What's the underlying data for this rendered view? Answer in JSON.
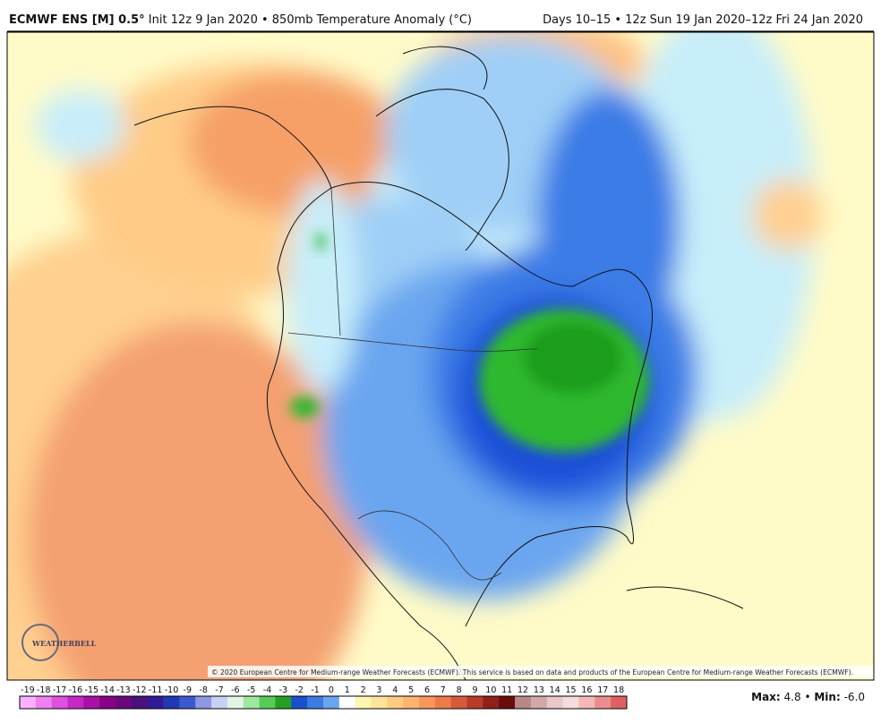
{
  "header": {
    "title_bold": "ECMWF ENS [M] 0.5°",
    "title_rest": "Init 12z 9 Jan 2020 • 850mb Temperature Anomaly (°C)",
    "right": "Days 10–15 • 12z Sun 19 Jan 2020–12z Fri 24 Jan 2020"
  },
  "map": {
    "copyright": "© 2020 European Centre for Medium-range Weather Forecasts (ECMWF). This service is based on data and products of the European Centre for Medium-range Weather Forecasts (ECMWF).",
    "logo": "WEATHERBELL"
  },
  "colorbar": {
    "labels": [
      -19,
      -18,
      -17,
      -16,
      -15,
      -14,
      -13,
      -12,
      -11,
      -10,
      -9,
      -8,
      -7,
      -6,
      -5,
      -4,
      -3,
      -2,
      -1,
      0,
      1,
      2,
      3,
      4,
      5,
      6,
      7,
      8,
      9,
      10,
      11,
      12,
      13,
      14,
      15,
      16,
      17,
      18
    ],
    "colors": [
      "#ffb0ff",
      "#f080f0",
      "#e050e0",
      "#c828c8",
      "#a810a8",
      "#880088",
      "#6a0a7a",
      "#4a107e",
      "#301a9a",
      "#2038b8",
      "#3a5ad0",
      "#8c98e0",
      "#c8d0f4",
      "#e4f4e4",
      "#9ee89e",
      "#56cc56",
      "#22a022",
      "#1a4fd0",
      "#3a7be6",
      "#6aa6ef",
      "#ffffff",
      "#fff6b0",
      "#ffe39a",
      "#ffcc80",
      "#ffb46c",
      "#fa9658",
      "#ee7a48",
      "#d85a38",
      "#b83c28",
      "#902018",
      "#6a0c0c",
      "#b88888",
      "#d4a8a8",
      "#e8c8c8",
      "#f6dcdc",
      "#f4b8b8",
      "#ec8c8c",
      "#e06060"
    ]
  },
  "stats": {
    "max_label": "Max:",
    "max": 4.8,
    "min_label": "Min:",
    "min": {
      "value": -6,
      "label": "-6.0"
    }
  }
}
